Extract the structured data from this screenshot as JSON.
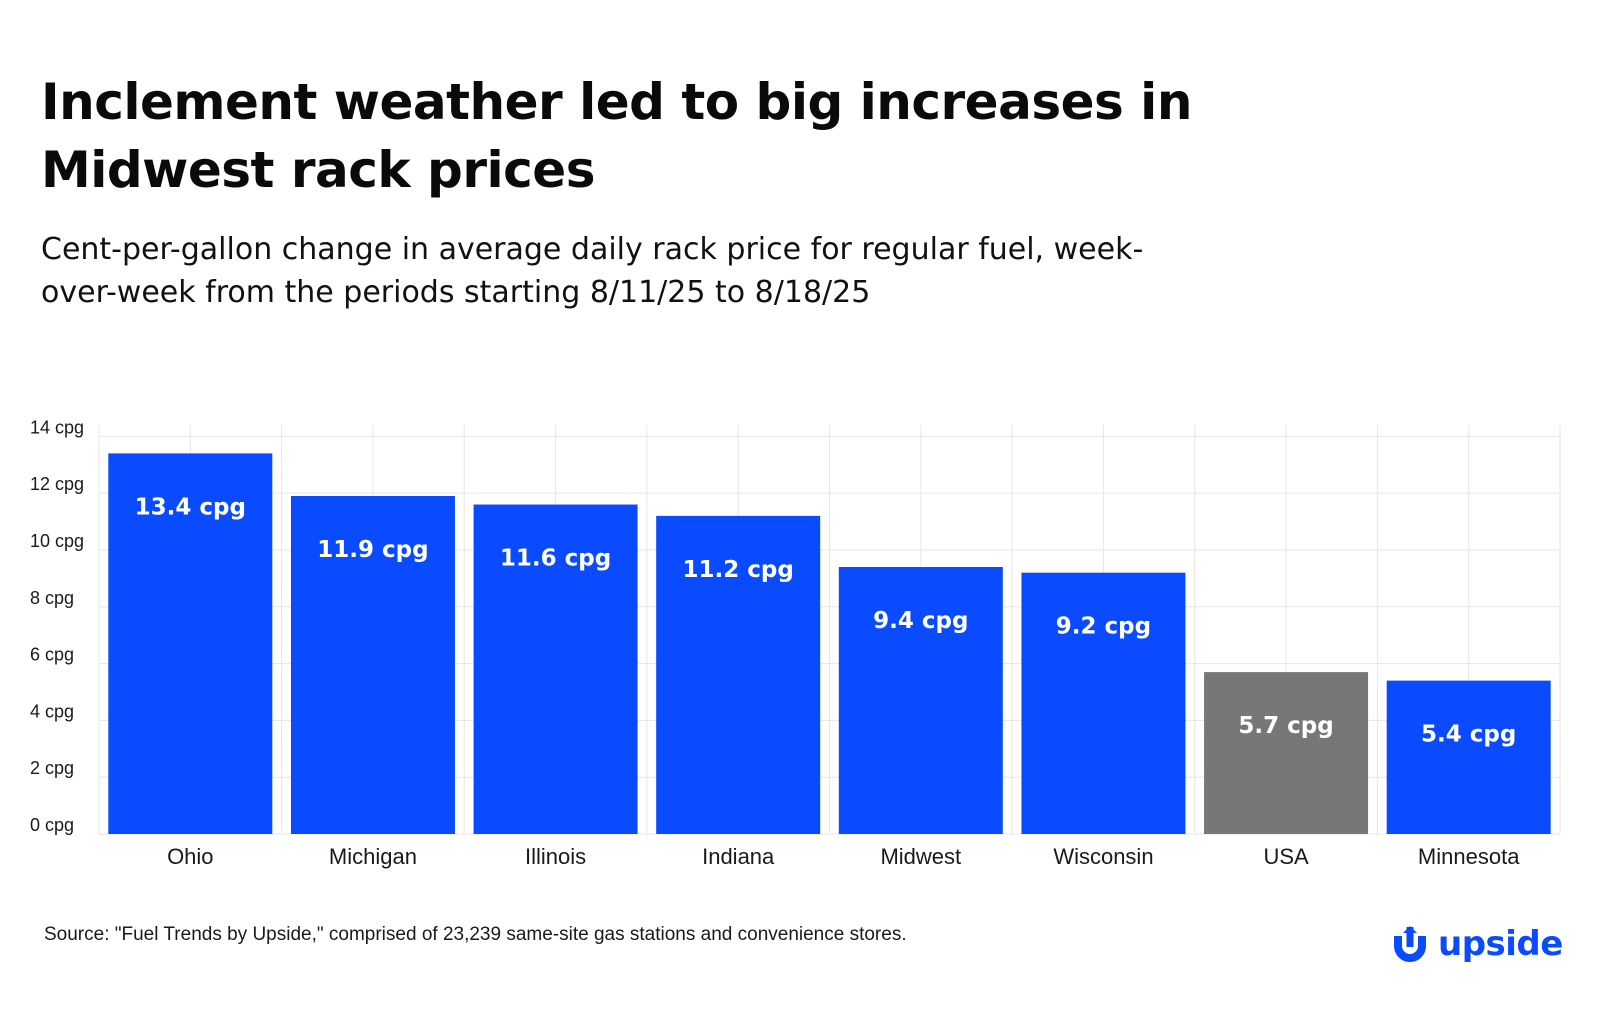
{
  "title_line1": "Inclement weather led to big increases in",
  "title_line2": "Midwest rack prices",
  "subtitle_line1": "Cent-per-gallon change in average daily rack price for regular fuel, week-",
  "subtitle_line2": "over-week from the periods starting 8/11/25 to 8/18/25",
  "source": "Source: \"Fuel Trends by Upside,\" comprised of 23,239 same-site gas stations and convenience stores.",
  "logo": {
    "text": "upside",
    "icon": "upside-logo-icon"
  },
  "colors": {
    "bar": "#0a4bff",
    "highlight_bar": "#777777",
    "grid": "#e6e6e6",
    "bar_label": "#ffffff",
    "axis_text": "#1a1a1a"
  },
  "chart_data": {
    "type": "bar",
    "categories": [
      "Ohio",
      "Michigan",
      "Illinois",
      "Indiana",
      "Midwest",
      "Wisconsin",
      "USA",
      "Minnesota"
    ],
    "values": [
      13.4,
      11.9,
      11.6,
      11.2,
      9.4,
      9.2,
      5.7,
      5.4
    ],
    "data_labels": [
      "13.4 cpg",
      "11.9 cpg",
      "11.6 cpg",
      "11.2 cpg",
      "9.4 cpg",
      "9.2 cpg",
      "5.7 cpg",
      "5.4 cpg"
    ],
    "highlighted_category": "USA",
    "y_ticks": [
      0,
      2,
      4,
      6,
      8,
      10,
      12,
      14
    ],
    "y_tick_labels": [
      "0 cpg",
      "2 cpg",
      "4 cpg",
      "6 cpg",
      "8 cpg",
      "10 cpg",
      "12 cpg",
      "14 cpg"
    ],
    "ylim": [
      0,
      14.4
    ],
    "xlabel": "",
    "ylabel": "",
    "grid": true,
    "legend": "none"
  }
}
